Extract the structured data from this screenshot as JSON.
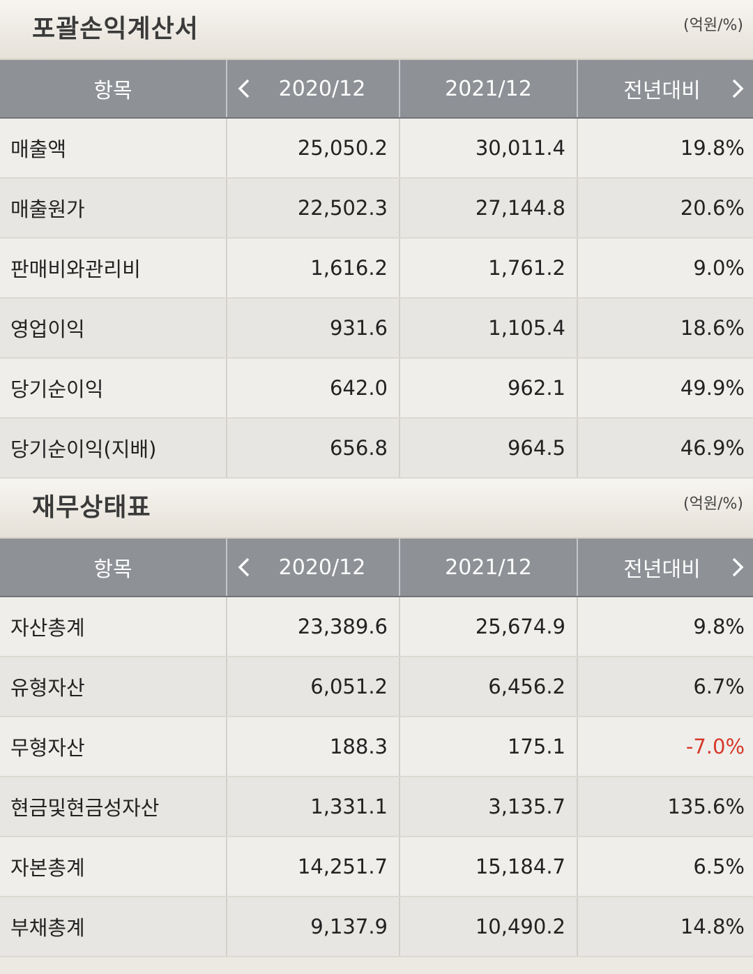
{
  "income_statement": {
    "title": "포괄손익계산서",
    "unit": "(억원/%)",
    "headers": {
      "item": "항목",
      "col1": "2020/12",
      "col2": "2021/12",
      "col3": "전년대비"
    },
    "rows": [
      {
        "label": "매출액",
        "v2020": "25,050.2",
        "v2021": "30,011.4",
        "yoy": "19.8%"
      },
      {
        "label": "매출원가",
        "v2020": "22,502.3",
        "v2021": "27,144.8",
        "yoy": "20.6%"
      },
      {
        "label": "판매비와관리비",
        "v2020": "1,616.2",
        "v2021": "1,761.2",
        "yoy": "9.0%"
      },
      {
        "label": "영업이익",
        "v2020": "931.6",
        "v2021": "1,105.4",
        "yoy": "18.6%"
      },
      {
        "label": "당기순이익",
        "v2020": "642.0",
        "v2021": "962.1",
        "yoy": "49.9%"
      },
      {
        "label": "당기순이익(지배)",
        "v2020": "656.8",
        "v2021": "964.5",
        "yoy": "46.9%"
      }
    ]
  },
  "balance_sheet": {
    "title": "재무상태표",
    "unit": "(억원/%)",
    "headers": {
      "item": "항목",
      "col1": "2020/12",
      "col2": "2021/12",
      "col3": "전년대비"
    },
    "rows": [
      {
        "label": "자산총계",
        "v2020": "23,389.6",
        "v2021": "25,674.9",
        "yoy": "9.8%"
      },
      {
        "label": "유형자산",
        "v2020": "6,051.2",
        "v2021": "6,456.2",
        "yoy": "6.7%"
      },
      {
        "label": "무형자산",
        "v2020": "188.3",
        "v2021": "175.1",
        "yoy": "-7.0%"
      },
      {
        "label": "현금및현금성자산",
        "v2020": "1,331.1",
        "v2021": "3,135.7",
        "yoy": "135.6%"
      },
      {
        "label": "자본총계",
        "v2020": "14,251.7",
        "v2021": "15,184.7",
        "yoy": "6.5%"
      },
      {
        "label": "부채총계",
        "v2020": "9,137.9",
        "v2021": "10,490.2",
        "yoy": "14.8%"
      }
    ]
  },
  "icons": {
    "prev": "chevron-left-icon",
    "next": "chevron-right-icon"
  },
  "colors": {
    "negative": "#d63a2b",
    "header_bg": "#8e9196"
  }
}
